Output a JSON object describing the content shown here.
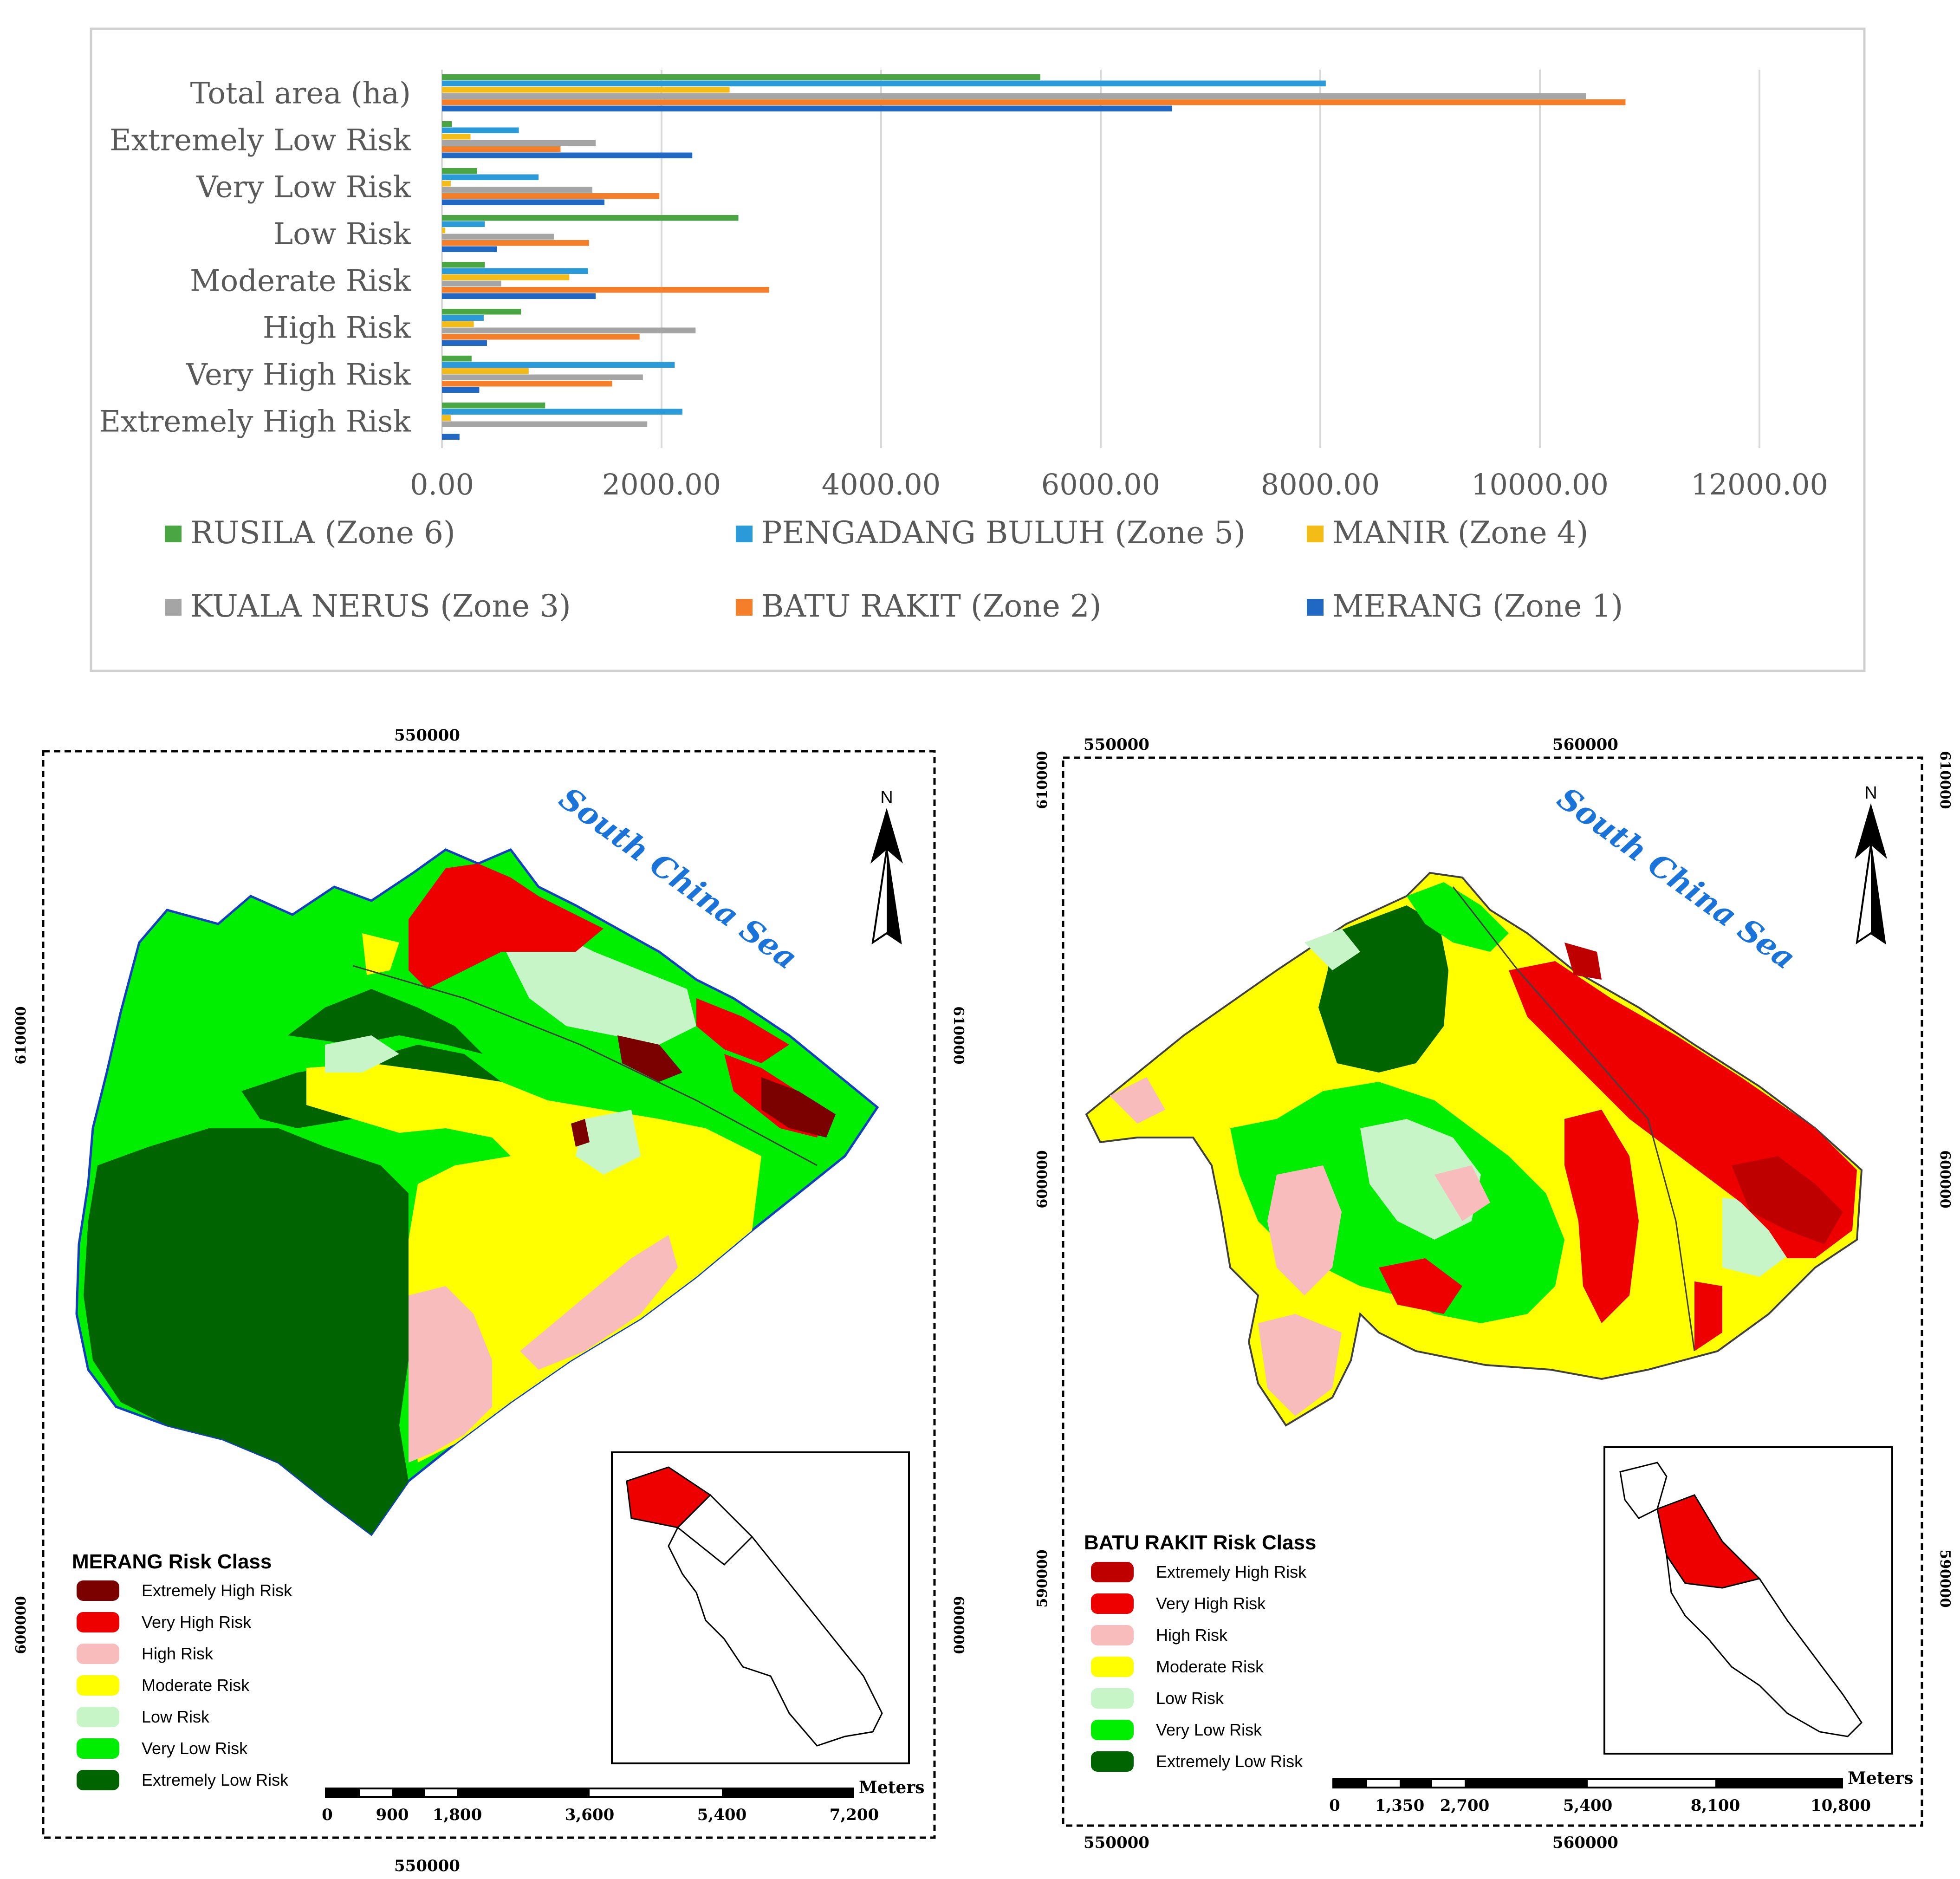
{
  "chart_data": {
    "type": "bar",
    "orientation": "horizontal",
    "categories": [
      "Total area (ha)",
      "Extremely Low Risk",
      "Very Low Risk",
      "Low Risk",
      "Moderate Risk",
      "High Risk",
      "Very High Risk",
      "Extremely High Risk"
    ],
    "xlim": [
      0,
      12000
    ],
    "xticks": [
      "0.00",
      "2000.00",
      "4000.00",
      "6000.00",
      "8000.00",
      "10000.00",
      "12000.00"
    ],
    "grid": true,
    "legend_position": "bottom",
    "series": [
      {
        "name": "RUSILA (Zone 6)",
        "color": "#4aa543",
        "values": [
          5450,
          90,
          320,
          2700,
          390,
          720,
          270,
          940
        ]
      },
      {
        "name": "PENGADANG BULUH (Zone 5)",
        "color": "#2a9ad8",
        "values": [
          8050,
          700,
          880,
          390,
          1330,
          380,
          2120,
          2190
        ]
      },
      {
        "name": "MANIR (Zone 4)",
        "color": "#f4bc17",
        "values": [
          2620,
          260,
          80,
          30,
          1160,
          290,
          790,
          80
        ]
      },
      {
        "name": "KUALA NERUS (Zone 3)",
        "color": "#a5a5a5",
        "values": [
          10420,
          1400,
          1370,
          1020,
          540,
          2310,
          1830,
          1870
        ]
      },
      {
        "name": "BATU RAKIT (Zone 2)",
        "color": "#f57e2a",
        "values": [
          10780,
          1080,
          1980,
          1340,
          2980,
          1800,
          1550,
          0
        ]
      },
      {
        "name": "MERANG  (Zone 1)",
        "color": "#2168c4",
        "values": [
          6650,
          2280,
          1480,
          500,
          1400,
          410,
          340,
          160
        ]
      }
    ]
  },
  "maps": {
    "merang": {
      "legend_title": "MERANG Risk Class",
      "sea_label": "South China Sea",
      "north": "N",
      "coord_top": "550000",
      "coord_bottom": "550000",
      "coord_left_a": "610000",
      "coord_left_b": "600000",
      "coord_right_a": "610000",
      "coord_right_b": "600000",
      "scale_unit": "Meters",
      "scale_labels": [
        "0",
        "900",
        "1,800",
        "3,600",
        "5,400",
        "7,200"
      ]
    },
    "batu_rakit": {
      "legend_title": "BATU RAKIT Risk Class",
      "sea_label": "South China Sea",
      "north": "N",
      "coord_top_a": "550000",
      "coord_top_b": "560000",
      "coord_bottom_a": "550000",
      "coord_bottom_b": "560000",
      "coord_left_a": "610000",
      "coord_left_b": "600000",
      "coord_left_c": "590000",
      "coord_right_a": "610000",
      "coord_right_b": "600000",
      "coord_right_c": "590000",
      "scale_unit": "Meters",
      "scale_labels": [
        "0",
        "1,350",
        "2,700",
        "5,400",
        "8,100",
        "10,800"
      ]
    },
    "legend_items": [
      {
        "label": "Extremely High Risk",
        "color": "#7b0000"
      },
      {
        "label": "Very High Risk",
        "color": "#ee0000"
      },
      {
        "label": "High Risk",
        "color": "#f9bcbc"
      },
      {
        "label": "Moderate Risk",
        "color": "#ffff00"
      },
      {
        "label": "Low Risk",
        "color": "#c8f5c8"
      },
      {
        "label": "Very Low Risk",
        "color": "#00ee00"
      },
      {
        "label": "Extremely Low Risk",
        "color": "#006400"
      }
    ],
    "batu_legend_items": [
      {
        "label": "Extremely High Risk",
        "color": "#bf0000"
      },
      {
        "label": "Very High Risk",
        "color": "#ee0000"
      },
      {
        "label": "High Risk",
        "color": "#f9bcbc"
      },
      {
        "label": "Moderate Risk",
        "color": "#ffff00"
      },
      {
        "label": "Low Risk",
        "color": "#c8f5c8"
      },
      {
        "label": "Very Low Risk",
        "color": "#00ee00"
      },
      {
        "label": "Extremely Low Risk",
        "color": "#006400"
      }
    ]
  }
}
